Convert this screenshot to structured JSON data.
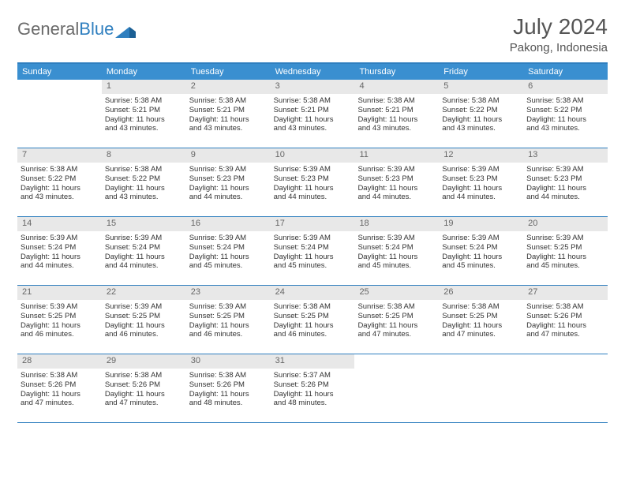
{
  "brand": {
    "general": "General",
    "blue": "Blue"
  },
  "title": "July 2024",
  "location": "Pakong, Indonesia",
  "colors": {
    "header_bar": "#3a8fd0",
    "week_border": "#2f7fbf",
    "daynum_bg": "#e8e8e8",
    "text": "#333333",
    "header_text": "#ffffff"
  },
  "day_headers": [
    "Sunday",
    "Monday",
    "Tuesday",
    "Wednesday",
    "Thursday",
    "Friday",
    "Saturday"
  ],
  "weeks": [
    [
      {
        "n": "",
        "sr": "",
        "ss": "",
        "d1": "",
        "d2": "",
        "empty": true
      },
      {
        "n": "1",
        "sr": "Sunrise: 5:38 AM",
        "ss": "Sunset: 5:21 PM",
        "d1": "Daylight: 11 hours",
        "d2": "and 43 minutes."
      },
      {
        "n": "2",
        "sr": "Sunrise: 5:38 AM",
        "ss": "Sunset: 5:21 PM",
        "d1": "Daylight: 11 hours",
        "d2": "and 43 minutes."
      },
      {
        "n": "3",
        "sr": "Sunrise: 5:38 AM",
        "ss": "Sunset: 5:21 PM",
        "d1": "Daylight: 11 hours",
        "d2": "and 43 minutes."
      },
      {
        "n": "4",
        "sr": "Sunrise: 5:38 AM",
        "ss": "Sunset: 5:21 PM",
        "d1": "Daylight: 11 hours",
        "d2": "and 43 minutes."
      },
      {
        "n": "5",
        "sr": "Sunrise: 5:38 AM",
        "ss": "Sunset: 5:22 PM",
        "d1": "Daylight: 11 hours",
        "d2": "and 43 minutes."
      },
      {
        "n": "6",
        "sr": "Sunrise: 5:38 AM",
        "ss": "Sunset: 5:22 PM",
        "d1": "Daylight: 11 hours",
        "d2": "and 43 minutes."
      }
    ],
    [
      {
        "n": "7",
        "sr": "Sunrise: 5:38 AM",
        "ss": "Sunset: 5:22 PM",
        "d1": "Daylight: 11 hours",
        "d2": "and 43 minutes."
      },
      {
        "n": "8",
        "sr": "Sunrise: 5:38 AM",
        "ss": "Sunset: 5:22 PM",
        "d1": "Daylight: 11 hours",
        "d2": "and 43 minutes."
      },
      {
        "n": "9",
        "sr": "Sunrise: 5:39 AM",
        "ss": "Sunset: 5:23 PM",
        "d1": "Daylight: 11 hours",
        "d2": "and 44 minutes."
      },
      {
        "n": "10",
        "sr": "Sunrise: 5:39 AM",
        "ss": "Sunset: 5:23 PM",
        "d1": "Daylight: 11 hours",
        "d2": "and 44 minutes."
      },
      {
        "n": "11",
        "sr": "Sunrise: 5:39 AM",
        "ss": "Sunset: 5:23 PM",
        "d1": "Daylight: 11 hours",
        "d2": "and 44 minutes."
      },
      {
        "n": "12",
        "sr": "Sunrise: 5:39 AM",
        "ss": "Sunset: 5:23 PM",
        "d1": "Daylight: 11 hours",
        "d2": "and 44 minutes."
      },
      {
        "n": "13",
        "sr": "Sunrise: 5:39 AM",
        "ss": "Sunset: 5:23 PM",
        "d1": "Daylight: 11 hours",
        "d2": "and 44 minutes."
      }
    ],
    [
      {
        "n": "14",
        "sr": "Sunrise: 5:39 AM",
        "ss": "Sunset: 5:24 PM",
        "d1": "Daylight: 11 hours",
        "d2": "and 44 minutes."
      },
      {
        "n": "15",
        "sr": "Sunrise: 5:39 AM",
        "ss": "Sunset: 5:24 PM",
        "d1": "Daylight: 11 hours",
        "d2": "and 44 minutes."
      },
      {
        "n": "16",
        "sr": "Sunrise: 5:39 AM",
        "ss": "Sunset: 5:24 PM",
        "d1": "Daylight: 11 hours",
        "d2": "and 45 minutes."
      },
      {
        "n": "17",
        "sr": "Sunrise: 5:39 AM",
        "ss": "Sunset: 5:24 PM",
        "d1": "Daylight: 11 hours",
        "d2": "and 45 minutes."
      },
      {
        "n": "18",
        "sr": "Sunrise: 5:39 AM",
        "ss": "Sunset: 5:24 PM",
        "d1": "Daylight: 11 hours",
        "d2": "and 45 minutes."
      },
      {
        "n": "19",
        "sr": "Sunrise: 5:39 AM",
        "ss": "Sunset: 5:24 PM",
        "d1": "Daylight: 11 hours",
        "d2": "and 45 minutes."
      },
      {
        "n": "20",
        "sr": "Sunrise: 5:39 AM",
        "ss": "Sunset: 5:25 PM",
        "d1": "Daylight: 11 hours",
        "d2": "and 45 minutes."
      }
    ],
    [
      {
        "n": "21",
        "sr": "Sunrise: 5:39 AM",
        "ss": "Sunset: 5:25 PM",
        "d1": "Daylight: 11 hours",
        "d2": "and 46 minutes."
      },
      {
        "n": "22",
        "sr": "Sunrise: 5:39 AM",
        "ss": "Sunset: 5:25 PM",
        "d1": "Daylight: 11 hours",
        "d2": "and 46 minutes."
      },
      {
        "n": "23",
        "sr": "Sunrise: 5:39 AM",
        "ss": "Sunset: 5:25 PM",
        "d1": "Daylight: 11 hours",
        "d2": "and 46 minutes."
      },
      {
        "n": "24",
        "sr": "Sunrise: 5:38 AM",
        "ss": "Sunset: 5:25 PM",
        "d1": "Daylight: 11 hours",
        "d2": "and 46 minutes."
      },
      {
        "n": "25",
        "sr": "Sunrise: 5:38 AM",
        "ss": "Sunset: 5:25 PM",
        "d1": "Daylight: 11 hours",
        "d2": "and 47 minutes."
      },
      {
        "n": "26",
        "sr": "Sunrise: 5:38 AM",
        "ss": "Sunset: 5:25 PM",
        "d1": "Daylight: 11 hours",
        "d2": "and 47 minutes."
      },
      {
        "n": "27",
        "sr": "Sunrise: 5:38 AM",
        "ss": "Sunset: 5:26 PM",
        "d1": "Daylight: 11 hours",
        "d2": "and 47 minutes."
      }
    ],
    [
      {
        "n": "28",
        "sr": "Sunrise: 5:38 AM",
        "ss": "Sunset: 5:26 PM",
        "d1": "Daylight: 11 hours",
        "d2": "and 47 minutes."
      },
      {
        "n": "29",
        "sr": "Sunrise: 5:38 AM",
        "ss": "Sunset: 5:26 PM",
        "d1": "Daylight: 11 hours",
        "d2": "and 47 minutes."
      },
      {
        "n": "30",
        "sr": "Sunrise: 5:38 AM",
        "ss": "Sunset: 5:26 PM",
        "d1": "Daylight: 11 hours",
        "d2": "and 48 minutes."
      },
      {
        "n": "31",
        "sr": "Sunrise: 5:37 AM",
        "ss": "Sunset: 5:26 PM",
        "d1": "Daylight: 11 hours",
        "d2": "and 48 minutes."
      },
      {
        "n": "",
        "sr": "",
        "ss": "",
        "d1": "",
        "d2": "",
        "empty": true
      },
      {
        "n": "",
        "sr": "",
        "ss": "",
        "d1": "",
        "d2": "",
        "empty": true
      },
      {
        "n": "",
        "sr": "",
        "ss": "",
        "d1": "",
        "d2": "",
        "empty": true
      }
    ]
  ]
}
